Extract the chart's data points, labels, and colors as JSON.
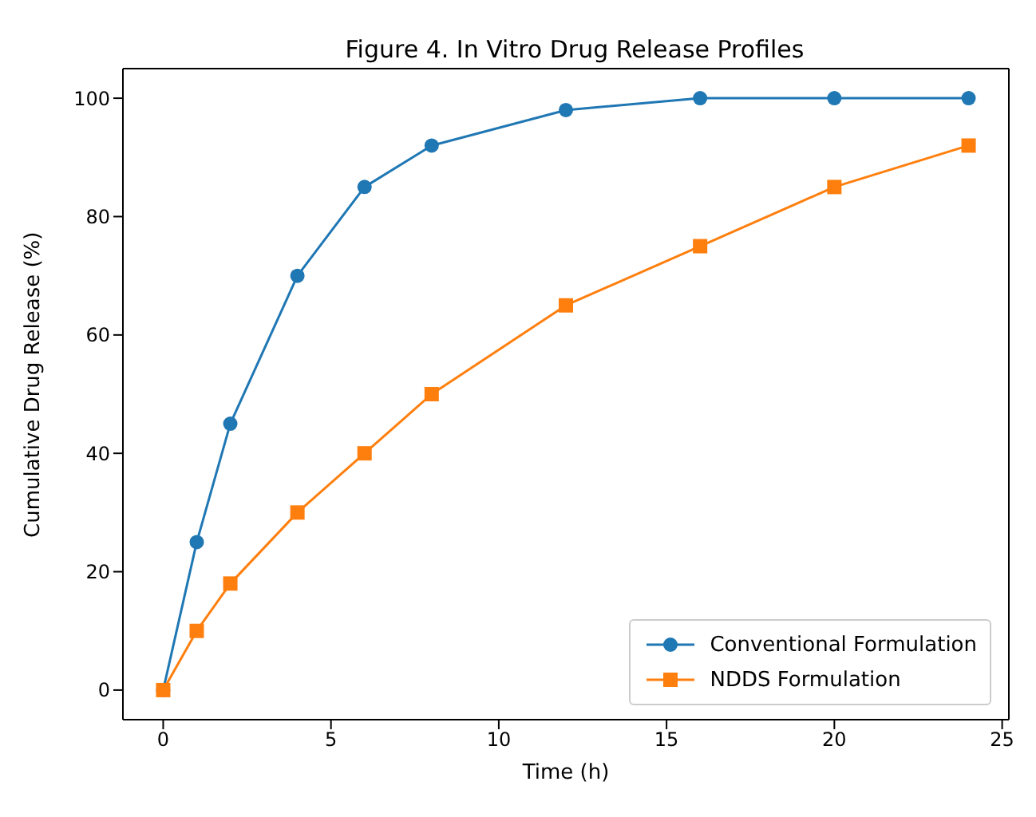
{
  "chart_data": {
    "type": "line",
    "title": "Figure 4. In Vitro Drug Release Profiles",
    "xlabel": "Time (h)",
    "ylabel": "Cumulative Drug Release (%)",
    "x": [
      0,
      1,
      2,
      4,
      6,
      8,
      12,
      16,
      20,
      24
    ],
    "series": [
      {
        "name": "Conventional Formulation",
        "color": "#1f77b4",
        "marker": "circle",
        "values": [
          0,
          25,
          45,
          70,
          85,
          92,
          98,
          100,
          100,
          100
        ]
      },
      {
        "name": "NDDS Formulation",
        "color": "#ff7f0e",
        "marker": "square",
        "values": [
          0,
          10,
          18,
          30,
          40,
          50,
          65,
          75,
          85,
          92
        ]
      }
    ],
    "xlim": [
      -1.2,
      25.2
    ],
    "xticks": [
      0,
      5,
      10,
      15,
      20,
      25
    ],
    "ylim": [
      -5,
      105
    ],
    "yticks": [
      0,
      20,
      40,
      60,
      80,
      100
    ],
    "legend": "bottom right",
    "line_style": "solid"
  }
}
